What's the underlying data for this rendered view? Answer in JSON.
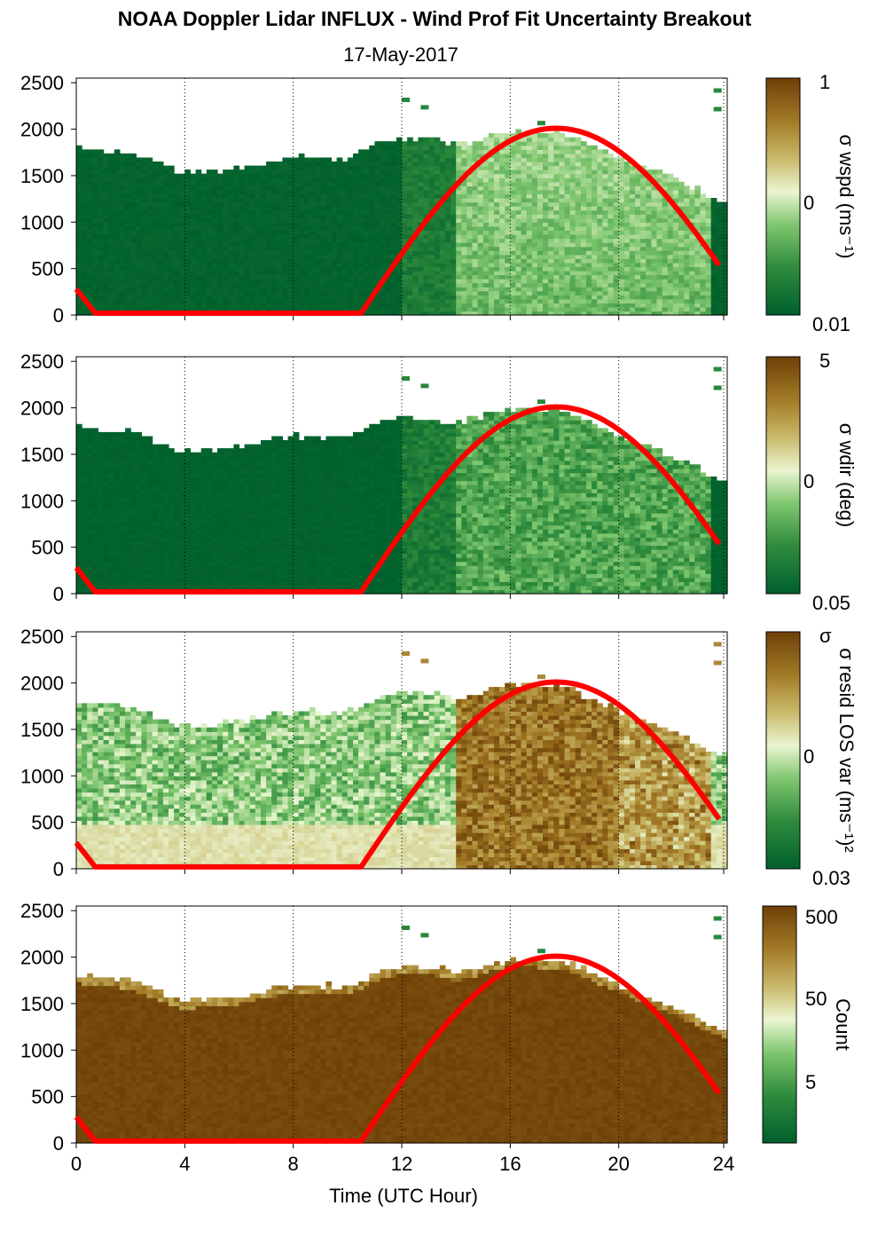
{
  "figure": {
    "title": "NOAA Doppler Lidar INFLUX - Wind Prof Fit Uncertainty Breakout",
    "subtitle": "17-May-2017",
    "xlabel": "Time (UTC Hour)"
  },
  "colors": {
    "daylight_curve": "#ff0000",
    "colormap": [
      "#00602d",
      "#2e8b3c",
      "#7fc66f",
      "#eaf5d0",
      "#c9b96a",
      "#a27a26",
      "#6e4008"
    ]
  },
  "chart_data": [
    {
      "type": "heatmap",
      "panel": "wspd_uncertainty",
      "colorbar_label": "σ wspd (ms⁻¹)",
      "colorbar_ticks": [
        "1",
        "0",
        "0.01"
      ],
      "x": {
        "label": "Time (UTC Hour)",
        "range": [
          0,
          24
        ],
        "ticks": [
          "0",
          "4",
          "8",
          "12",
          "16",
          "20",
          "24"
        ]
      },
      "y": {
        "range": [
          0,
          2550
        ],
        "ticks": [
          "0",
          "500",
          "1000",
          "1500",
          "2000",
          "2500"
        ]
      },
      "cloud_top_profile": {
        "hours": [
          0,
          2,
          4,
          6,
          8,
          10,
          11,
          12,
          13,
          14,
          16,
          18,
          20,
          22,
          23.8
        ],
        "heights": [
          1780,
          1720,
          1500,
          1560,
          1680,
          1660,
          1800,
          1880,
          1870,
          1810,
          1960,
          1940,
          1680,
          1450,
          1200
        ]
      },
      "daylight_curve": {
        "hours": [
          0,
          0.7,
          10.5,
          12,
          14,
          16,
          17.5,
          18,
          20,
          22,
          23.8
        ],
        "values": [
          280,
          20,
          20,
          550,
          1300,
          1850,
          2010,
          2000,
          1700,
          1080,
          450
        ]
      }
    },
    {
      "type": "heatmap",
      "panel": "wdir_uncertainty",
      "colorbar_label": "σ wdir (deg)",
      "colorbar_ticks": [
        "5",
        "0",
        "0.05"
      ],
      "x": {
        "label": "Time (UTC Hour)",
        "range": [
          0,
          24
        ],
        "ticks": [
          "0",
          "4",
          "8",
          "12",
          "16",
          "20",
          "24"
        ]
      },
      "y": {
        "range": [
          0,
          2550
        ],
        "ticks": [
          "0",
          "500",
          "1000",
          "1500",
          "2000",
          "2500"
        ]
      },
      "cloud_top_profile": {
        "hours": [
          0,
          2,
          4,
          6,
          8,
          10,
          11,
          12,
          13,
          14,
          16,
          18,
          20,
          22,
          23.8
        ],
        "heights": [
          1780,
          1720,
          1500,
          1560,
          1680,
          1660,
          1800,
          1880,
          1870,
          1810,
          1960,
          1940,
          1680,
          1450,
          1200
        ]
      },
      "daylight_curve": {
        "hours": [
          0,
          0.7,
          10.5,
          12,
          14,
          16,
          17.5,
          18,
          20,
          22,
          23.8
        ],
        "values": [
          280,
          20,
          20,
          550,
          1300,
          1850,
          2010,
          2000,
          1700,
          1080,
          450
        ]
      }
    },
    {
      "type": "heatmap",
      "panel": "resid_los_var",
      "colorbar_label": "σ resid LOS var (ms⁻¹)²",
      "colorbar_ticks": [
        "σ",
        "0",
        "0.03"
      ],
      "x": {
        "label": "Time (UTC Hour)",
        "range": [
          0,
          24
        ],
        "ticks": [
          "0",
          "4",
          "8",
          "12",
          "16",
          "20",
          "24"
        ]
      },
      "y": {
        "range": [
          0,
          2550
        ],
        "ticks": [
          "0",
          "500",
          "1000",
          "1500",
          "2000",
          "2500"
        ]
      },
      "cloud_top_profile": {
        "hours": [
          0,
          2,
          4,
          6,
          8,
          10,
          11,
          12,
          13,
          14,
          16,
          18,
          20,
          22,
          23.8
        ],
        "heights": [
          1780,
          1720,
          1500,
          1560,
          1680,
          1660,
          1800,
          1880,
          1870,
          1810,
          1960,
          1940,
          1680,
          1450,
          1200
        ]
      },
      "daylight_curve": {
        "hours": [
          0,
          0.7,
          10.5,
          12,
          14,
          16,
          17.5,
          18,
          20,
          22,
          23.8
        ],
        "values": [
          280,
          20,
          20,
          550,
          1300,
          1850,
          2010,
          2000,
          1700,
          1080,
          450
        ]
      }
    },
    {
      "type": "heatmap",
      "panel": "count",
      "colorbar_label": "Count",
      "colorbar_ticks": [
        "500",
        "50",
        "5"
      ],
      "x": {
        "label": "Time (UTC Hour)",
        "range": [
          0,
          24
        ],
        "ticks": [
          "0",
          "4",
          "8",
          "12",
          "16",
          "20",
          "24"
        ]
      },
      "y": {
        "range": [
          0,
          2550
        ],
        "ticks": [
          "0",
          "500",
          "1000",
          "1500",
          "2000",
          "2500"
        ]
      },
      "cloud_top_profile": {
        "hours": [
          0,
          2,
          4,
          6,
          8,
          10,
          11,
          12,
          13,
          14,
          16,
          18,
          20,
          22,
          23.8
        ],
        "heights": [
          1780,
          1720,
          1500,
          1560,
          1680,
          1660,
          1800,
          1880,
          1870,
          1810,
          1960,
          1940,
          1680,
          1450,
          1200
        ]
      },
      "daylight_curve": {
        "hours": [
          0,
          0.7,
          10.5,
          12,
          14,
          16,
          17.5,
          18,
          20,
          22,
          23.8
        ],
        "values": [
          280,
          20,
          20,
          550,
          1300,
          1850,
          2010,
          2000,
          1700,
          1080,
          450
        ]
      }
    }
  ]
}
